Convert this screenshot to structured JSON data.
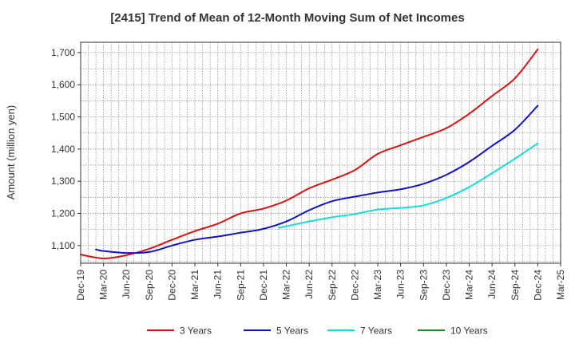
{
  "chart_data": {
    "type": "line",
    "title": "[2415]  Trend of Mean of 12-Month Moving Sum of Net Incomes",
    "ylabel": "Amount (million yen)",
    "xlabel": "",
    "ylim": [
      1045,
      1732
    ],
    "yticks": [
      1100,
      1200,
      1300,
      1400,
      1500,
      1600,
      1700
    ],
    "ytick_labels": [
      "1,100",
      "1,200",
      "1,300",
      "1,400",
      "1,500",
      "1,600",
      "1,700"
    ],
    "x_labels": [
      "Dec-19",
      "Mar-20",
      "Jun-20",
      "Sep-20",
      "Dec-20",
      "Mar-21",
      "Jun-21",
      "Sep-21",
      "Dec-21",
      "Mar-22",
      "Jun-22",
      "Sep-22",
      "Dec-22",
      "Mar-23",
      "Jun-23",
      "Sep-23",
      "Dec-23",
      "Mar-24",
      "Jun-24",
      "Sep-24",
      "Dec-24",
      "Mar-25"
    ],
    "grid": true,
    "legend_position": "bottom",
    "series": [
      {
        "name": "3 Years",
        "color": "#dd1111",
        "points": [
          [
            "Dec-19",
            1072
          ],
          [
            "Mar-20",
            1060
          ],
          [
            "Jun-20",
            1070
          ],
          [
            "Sep-20",
            1090
          ],
          [
            "Dec-20",
            1118
          ],
          [
            "Mar-21",
            1145
          ],
          [
            "Jun-21",
            1168
          ],
          [
            "Sep-21",
            1200
          ],
          [
            "Dec-21",
            1215
          ],
          [
            "Mar-22",
            1240
          ],
          [
            "Jun-22",
            1278
          ],
          [
            "Sep-22",
            1305
          ],
          [
            "Dec-22",
            1335
          ],
          [
            "Mar-23",
            1385
          ],
          [
            "Jun-23",
            1412
          ],
          [
            "Sep-23",
            1438
          ],
          [
            "Dec-23",
            1465
          ],
          [
            "Mar-24",
            1510
          ],
          [
            "Jun-24",
            1565
          ],
          [
            "Sep-24",
            1620
          ],
          [
            "Dec-24",
            1710
          ]
        ]
      },
      {
        "name": "5 Years",
        "color": "#1111cc",
        "points": [
          [
            "Feb-20",
            1088
          ],
          [
            "Mar-20",
            1083
          ],
          [
            "Jun-20",
            1077
          ],
          [
            "Sep-20",
            1080
          ],
          [
            "Dec-20",
            1100
          ],
          [
            "Mar-21",
            1118
          ],
          [
            "Jun-21",
            1128
          ],
          [
            "Sep-21",
            1140
          ],
          [
            "Dec-21",
            1152
          ],
          [
            "Mar-22",
            1175
          ],
          [
            "Jun-22",
            1210
          ],
          [
            "Sep-22",
            1238
          ],
          [
            "Dec-22",
            1252
          ],
          [
            "Mar-23",
            1265
          ],
          [
            "Jun-23",
            1275
          ],
          [
            "Sep-23",
            1292
          ],
          [
            "Dec-23",
            1320
          ],
          [
            "Mar-24",
            1360
          ],
          [
            "Jun-24",
            1410
          ],
          [
            "Sep-24",
            1460
          ],
          [
            "Dec-24",
            1535
          ]
        ]
      },
      {
        "name": "7 Years",
        "color": "#11dddd",
        "points": [
          [
            "Feb-22",
            1155
          ],
          [
            "Mar-22",
            1160
          ],
          [
            "Jun-22",
            1175
          ],
          [
            "Sep-22",
            1188
          ],
          [
            "Dec-22",
            1198
          ],
          [
            "Mar-23",
            1212
          ],
          [
            "Jun-23",
            1217
          ],
          [
            "Sep-23",
            1225
          ],
          [
            "Dec-23",
            1248
          ],
          [
            "Mar-24",
            1282
          ],
          [
            "Jun-24",
            1325
          ],
          [
            "Sep-24",
            1370
          ],
          [
            "Dec-24",
            1418
          ]
        ]
      },
      {
        "name": "10 Years",
        "color": "#228822",
        "points": []
      }
    ]
  }
}
